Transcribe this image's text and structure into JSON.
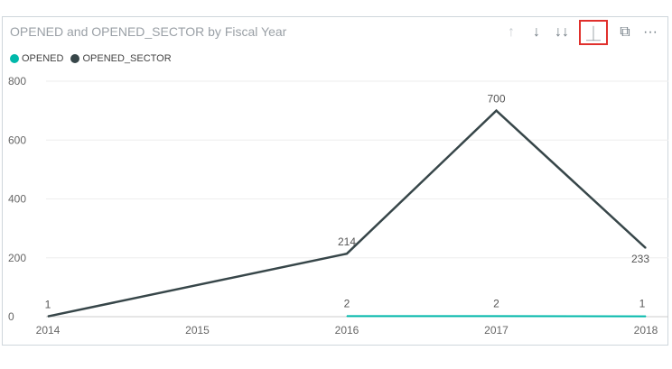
{
  "visual": {
    "title": "OPENED and OPENED_SECTOR by Fiscal Year",
    "toolbar": [
      {
        "name": "drill-up-icon",
        "glyph": "↑",
        "disabled": true
      },
      {
        "name": "drill-down-icon",
        "glyph": "↓",
        "disabled": false
      },
      {
        "name": "expand-all-down-icon",
        "glyph": "↓↓",
        "disabled": false
      },
      {
        "name": "expand-next-level-icon",
        "glyph": "⏊",
        "highlight": true
      },
      {
        "name": "focus-mode-icon",
        "glyph": "⧉",
        "disabled": false
      },
      {
        "name": "more-options-icon",
        "glyph": "···",
        "disabled": false
      }
    ]
  },
  "chart_data": {
    "type": "line",
    "title": "OPENED and OPENED_SECTOR by Fiscal Year",
    "xlabel": "",
    "ylabel": "",
    "categories": [
      "2014",
      "2015",
      "2016",
      "2017",
      "2018"
    ],
    "ylim": [
      0,
      800
    ],
    "yticks": [
      0,
      200,
      400,
      600,
      800
    ],
    "grid": true,
    "legend_position": "top-left",
    "series": [
      {
        "name": "OPENED",
        "color": "#01b8aa",
        "values": [
          null,
          null,
          2,
          2,
          1
        ],
        "labels": [
          "",
          "",
          "2",
          "2",
          "1"
        ]
      },
      {
        "name": "OPENED_SECTOR",
        "color": "#374649",
        "values": [
          1,
          null,
          214,
          700,
          233
        ],
        "labels": [
          "1",
          "",
          "214",
          "700",
          "233"
        ]
      }
    ]
  }
}
